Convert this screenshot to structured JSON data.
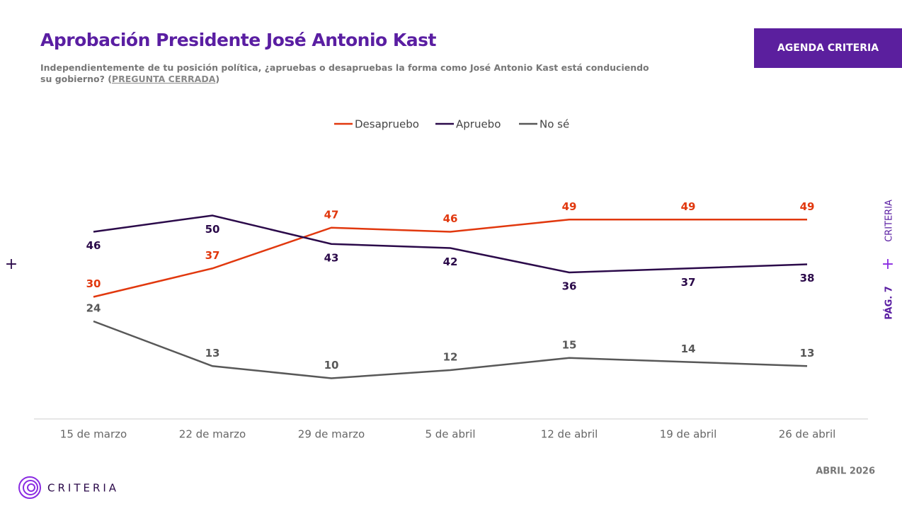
{
  "chart_data": {
    "type": "line",
    "categories": [
      "15 de marzo",
      "22 de marzo",
      "29 de marzo",
      "5 de abril",
      "12 de abril",
      "19 de abril",
      "26 de abril"
    ],
    "series": [
      {
        "name": "Desapruebo",
        "color": "#e1380e",
        "values": [
          30,
          37,
          47,
          46,
          49,
          49,
          49
        ]
      },
      {
        "name": "Apruebo",
        "color": "#2b0a4a",
        "values": [
          46,
          50,
          43,
          42,
          36,
          37,
          38
        ]
      },
      {
        "name": "No sé",
        "color": "#585858",
        "values": [
          24,
          13,
          10,
          12,
          15,
          14,
          13
        ]
      }
    ]
  },
  "page": {
    "title": "Aprobación Presidente José Antonio Kast",
    "subtitle": {
      "text": "Independientemente de tu posición política, ¿apruebas o desapruebas la forma como José Antonio Kast está conduciendo su gobierno? (",
      "emphasis": "PREGUNTA CERRADA",
      "end": ")"
    },
    "badge": "AGENDA CRITERIA",
    "side_brand": "CRITERIA",
    "page_number": "PÁG. 7",
    "date": "ABRIL 2026",
    "logo": "CRITERIA"
  }
}
